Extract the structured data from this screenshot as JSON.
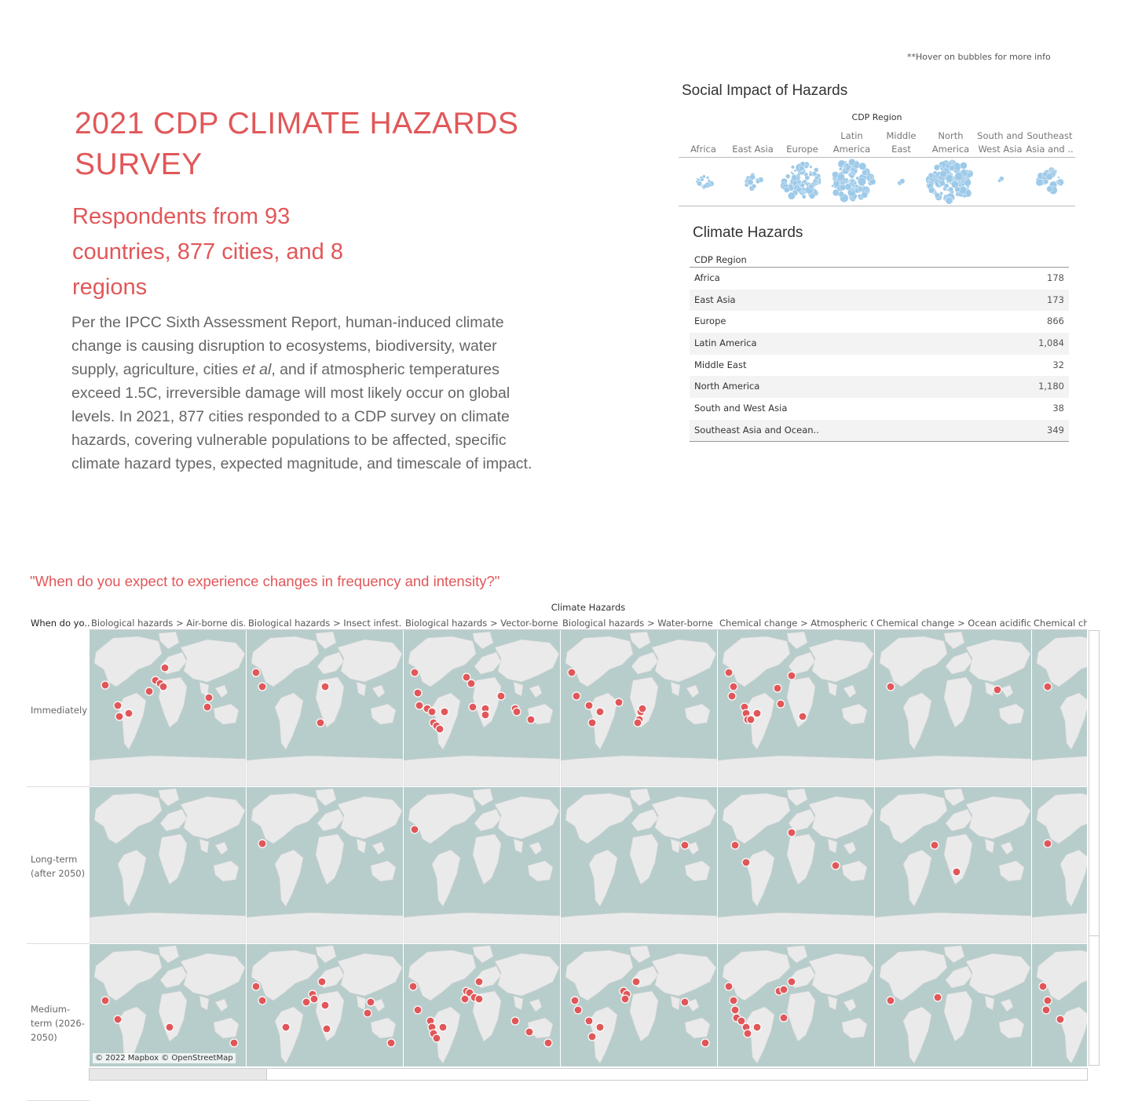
{
  "hover_note": "**Hover on bubbles for more info",
  "title_line1": "2021 CDP CLIMATE HAZARDS",
  "title_line2": "SURVEY",
  "subtitle_line1": "Respondents from 93",
  "subtitle_line2": "countries, 877 cities, and 8",
  "subtitle_line3": "regions",
  "body": {
    "part1": "Per the IPCC Sixth Assessment Report, human-induced climate change is causing disruption to ecosystems, biodiversity, water supply, agriculture, cities ",
    "italic": "et al",
    "part2": ", and if atmospheric temperatures exceed 1.5C, irreversible damage will most likely occur on global levels. In 2021, 877 cities responded to a CDP survey on climate hazards, covering vulnerable populations to be affected, specific climate hazard types, expected magnitude, and timescale of impact."
  },
  "social_impact": {
    "title": "Social Impact of Hazards",
    "header": "CDP Region",
    "bubble_color": "#9ecae9",
    "regions": [
      {
        "l1": "",
        "l2": "Africa",
        "weight": 178
      },
      {
        "l1": "",
        "l2": "East Asia",
        "weight": 173
      },
      {
        "l1": "",
        "l2": "Europe",
        "weight": 866
      },
      {
        "l1": "Latin",
        "l2": "America",
        "weight": 1084
      },
      {
        "l1": "Middle",
        "l2": "East",
        "weight": 32
      },
      {
        "l1": "North",
        "l2": "America",
        "weight": 1180
      },
      {
        "l1": "South and",
        "l2": "West Asia",
        "weight": 38
      },
      {
        "l1": "Southeast",
        "l2": "Asia and ..",
        "weight": 349
      }
    ]
  },
  "climate_hazards": {
    "title": "Climate Hazards",
    "column_header": "CDP Region",
    "rows": [
      {
        "region": "Africa",
        "value": "178"
      },
      {
        "region": "East Asia",
        "value": "173"
      },
      {
        "region": "Europe",
        "value": "866"
      },
      {
        "region": "Latin America",
        "value": "1,084"
      },
      {
        "region": "Middle East",
        "value": "32"
      },
      {
        "region": "North America",
        "value": "1,180"
      },
      {
        "region": "South and West Asia",
        "value": "38"
      },
      {
        "region": "Southeast Asia and Ocean..",
        "value": "349"
      }
    ]
  },
  "question": "\"When do you expect to experience changes in frequency and intensity?\"",
  "map_grid": {
    "column_header": "Climate Hazards",
    "row_header": "When do yo..",
    "ocean_color": "#b7cdcc",
    "land_color": "#eaeaea",
    "marker_color": "#e15759",
    "columns": [
      "Biological hazards > Air-borne dis..",
      "Biological hazards > Insect infest..",
      "Biological hazards > Vector-borne..",
      "Biological hazards > Water-borne ..",
      "Chemical change > Atmospheric C..",
      "Chemical change > Ocean acidifica..",
      "Chemical change > Salt water intrusion"
    ],
    "rows": [
      "Immediately",
      "Long-term (after 2050)",
      "Medium-term (2026-2050)"
    ],
    "attribution": "© 2022 Mapbox © OpenStreetMap"
  }
}
